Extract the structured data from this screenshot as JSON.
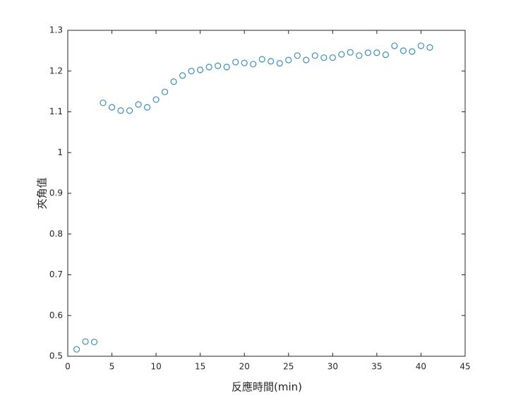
{
  "chart_data": {
    "type": "scatter",
    "x_label": "反應時間(min)",
    "y_label": "夾角值",
    "x": [
      1,
      2,
      3,
      4,
      5,
      6,
      7,
      8,
      9,
      10,
      11,
      12,
      13,
      14,
      15,
      16,
      17,
      18,
      19,
      20,
      21,
      22,
      23,
      24,
      25,
      26,
      27,
      28,
      29,
      30,
      31,
      32,
      33,
      34,
      35,
      36,
      37,
      38,
      39,
      40,
      41
    ],
    "values": [
      0.517,
      0.536,
      0.535,
      1.122,
      1.111,
      1.103,
      1.103,
      1.118,
      1.111,
      1.13,
      1.149,
      1.174,
      1.189,
      1.2,
      1.203,
      1.21,
      1.213,
      1.21,
      1.222,
      1.22,
      1.217,
      1.229,
      1.224,
      1.219,
      1.227,
      1.238,
      1.227,
      1.238,
      1.233,
      1.233,
      1.241,
      1.246,
      1.238,
      1.245,
      1.245,
      1.24,
      1.262,
      1.25,
      1.248,
      1.262,
      1.258
    ],
    "color": "#3b8dc2",
    "xlim": [
      0,
      45
    ],
    "xticks": [
      0,
      5,
      10,
      15,
      20,
      25,
      30,
      35,
      40,
      45
    ],
    "ylim": [
      0.5,
      1.3
    ],
    "yticks": [
      0.5,
      0.6,
      0.7,
      0.8,
      0.9,
      1,
      1.1,
      1.2,
      1.3
    ],
    "grid": false
  }
}
